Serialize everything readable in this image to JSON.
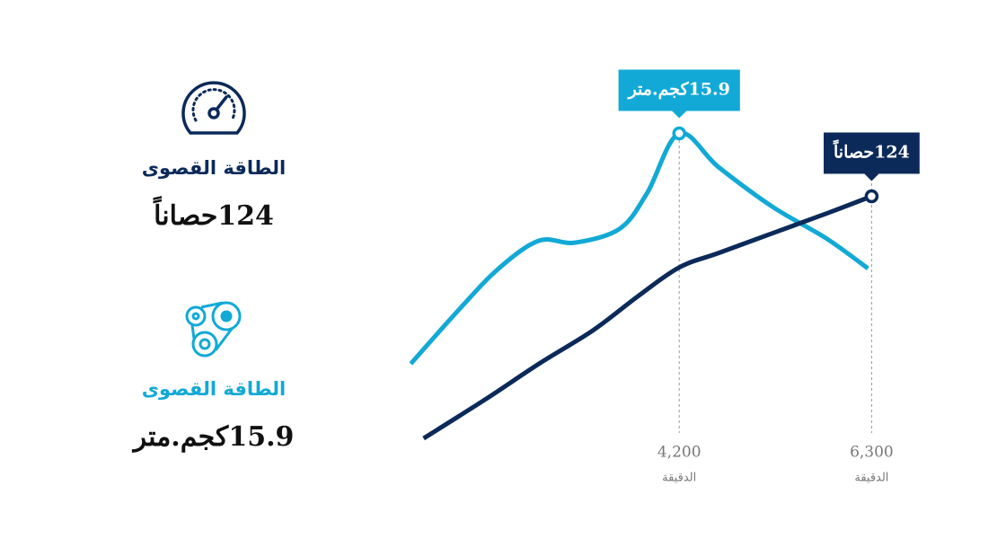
{
  "stats": [
    {
      "title": "الطاقة القصوى",
      "value": "124حصاناً"
    },
    {
      "title": "الطاقة القصوى",
      "value": "15.9كجم.متر"
    }
  ],
  "chart_data": {
    "type": "line",
    "xlim": [
      1100,
      6600
    ],
    "xticks": [
      {
        "value": 4200,
        "label": "4,200"
      },
      {
        "value": 6300,
        "label": "6,300"
      }
    ],
    "xlabel": "الدقيقة",
    "ylim": [
      0,
      185
    ],
    "y2lim": [
      0,
      19
    ],
    "series": [
      {
        "color": "#12a9d6",
        "axis": "y2",
        "x": [
          1270,
          1790,
          2230,
          2670,
          3060,
          3550,
          3850,
          4200,
          4630,
          5220,
          5810,
          6260
        ],
        "values": [
          4.3,
          7.0,
          9.1,
          10.5,
          10.4,
          11.1,
          12.9,
          15.9,
          14.2,
          12.2,
          10.6,
          9.1
        ],
        "value_labels": [
          null,
          null,
          null,
          null,
          null,
          null,
          null,
          "15.9كجم.متر",
          null,
          null,
          null,
          null
        ]
      },
      {
        "color": "#0b2a5a",
        "x": [
          1410,
          2080,
          2670,
          3260,
          3750,
          4200,
          4630,
          5220,
          5810,
          6300
        ],
        "values": [
          5.3,
          24.3,
          41.9,
          58.3,
          75.0,
          89.1,
          96.2,
          105.9,
          115.6,
          124.0
        ],
        "value_labels": [
          null,
          null,
          null,
          null,
          null,
          null,
          null,
          null,
          null,
          "124حصاناً"
        ]
      }
    ]
  }
}
